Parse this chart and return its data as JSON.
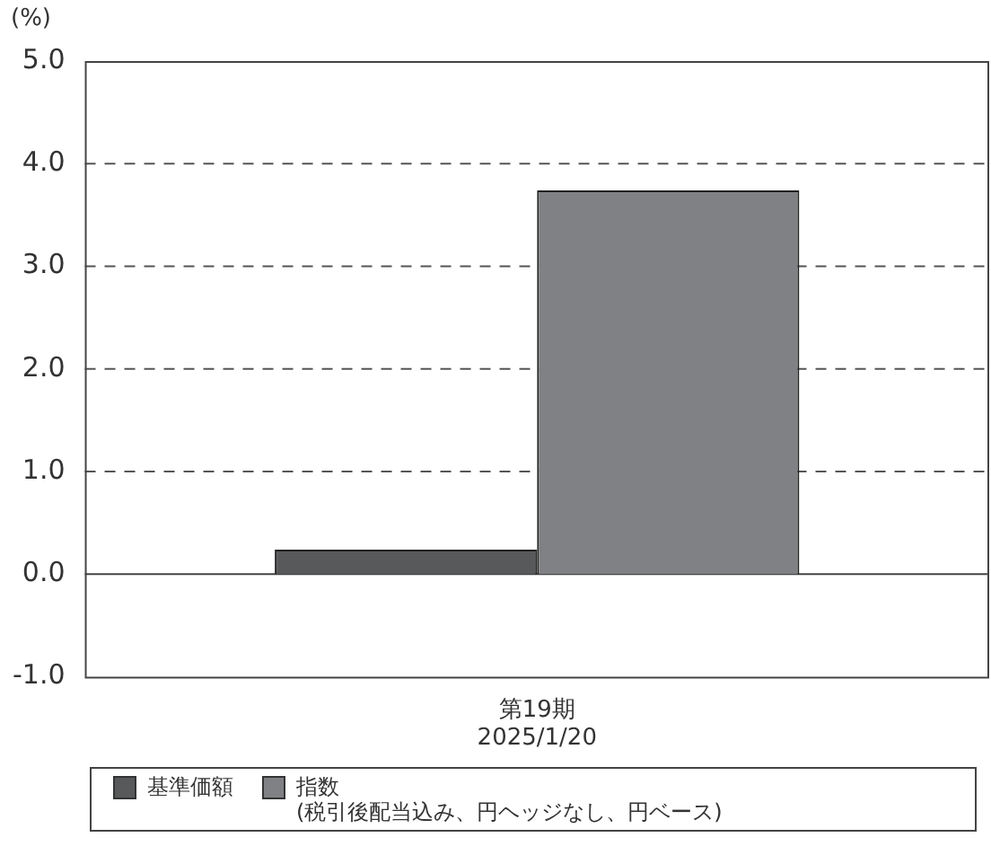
{
  "chart_data": {
    "type": "bar",
    "ylabel": "(%)",
    "categories": [
      "第19期\n2025/1/20"
    ],
    "series": [
      {
        "name": "基準価額",
        "color": "#58595b",
        "values": [
          0.24
        ]
      },
      {
        "name": "指数\n(税引後配当込み、円ヘッジなし、円ベース)",
        "color": "#808184",
        "values": [
          3.74
        ]
      }
    ],
    "ylim": [
      -1,
      5
    ],
    "yticks": [
      {
        "value": -1,
        "label": "-1.0"
      },
      {
        "value": 0,
        "label": "0.0"
      },
      {
        "value": 1,
        "label": "1.0"
      },
      {
        "value": 2,
        "label": "2.0"
      },
      {
        "value": 3,
        "label": "3.0"
      },
      {
        "value": 4,
        "label": "4.0"
      },
      {
        "value": 5,
        "label": "5.0"
      }
    ],
    "grid": "y",
    "legend": "bottom"
  }
}
